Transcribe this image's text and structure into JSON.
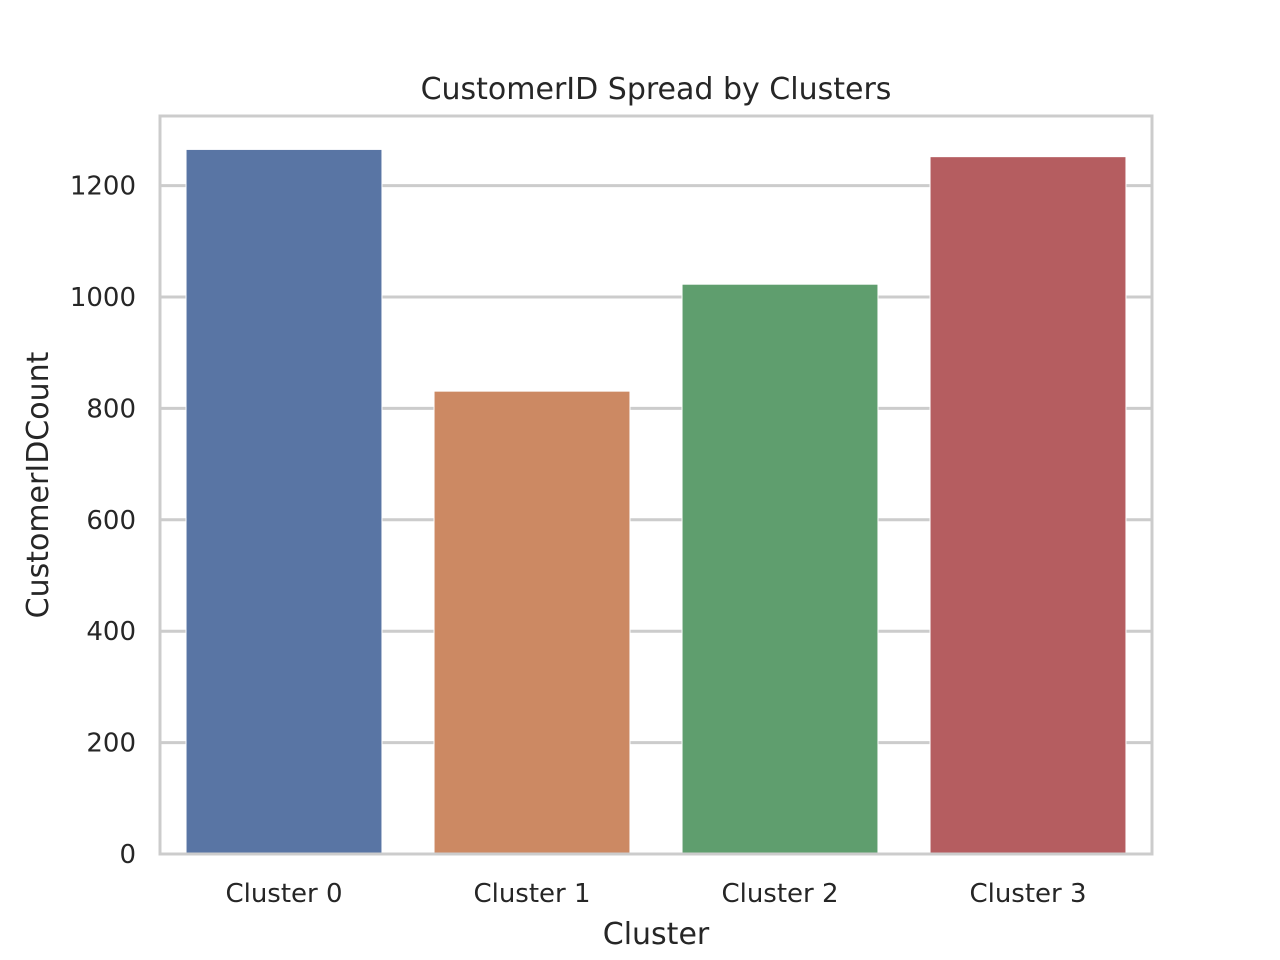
{
  "chart_data": {
    "type": "bar",
    "title": "CustomerID Spread by Clusters",
    "xlabel": "Cluster",
    "ylabel": "CustomerIDCount",
    "categories": [
      "Cluster 0",
      "Cluster 1",
      "Cluster 2",
      "Cluster 3"
    ],
    "values": [
      1265,
      831,
      1023,
      1252
    ],
    "colors": [
      "#5975a4",
      "#cc8963",
      "#5f9e6e",
      "#b55d60"
    ],
    "ylim": [
      0,
      1325
    ],
    "yticks": [
      0,
      200,
      400,
      600,
      800,
      1000,
      1200
    ],
    "ytick_labels": [
      "0",
      "200",
      "400",
      "600",
      "800",
      "1000",
      "1200"
    ],
    "grid": true,
    "grid_axis": "y",
    "gridline_color": "#cccccc",
    "text_color": "#262626"
  }
}
